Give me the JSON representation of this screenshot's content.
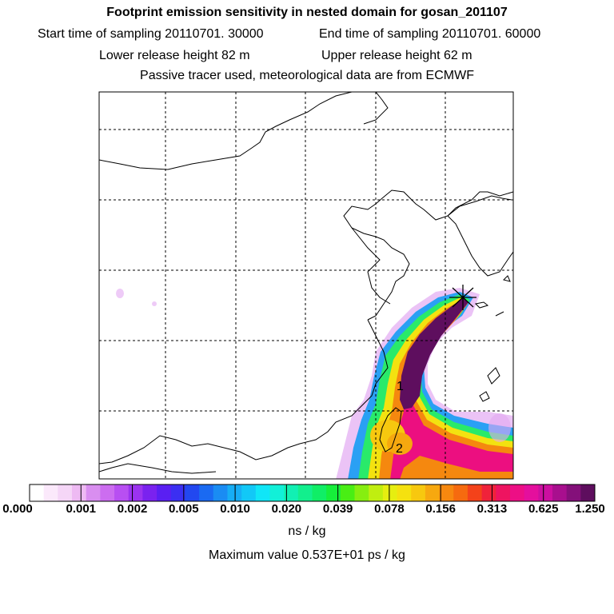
{
  "header": {
    "title": "Footprint emission sensitivity in nested domain for gosan_201107",
    "start_time": "Start time of sampling 20110701. 30000",
    "end_time": "End time of sampling 20110701. 60000",
    "lower_release": "Lower release height   82 m",
    "upper_release": "Upper release height   62 m",
    "tracer_info": "Passive tracer used, meteorological data are from ECMWF"
  },
  "map": {
    "labels": [
      {
        "text": "1"
      },
      {
        "text": "2"
      }
    ],
    "source_marker": "gosan-station-icon"
  },
  "colorbar": {
    "tick_labels": [
      "0.000",
      "0.001",
      "0.002",
      "0.005",
      "0.010",
      "0.020",
      "0.039",
      "0.078",
      "0.156",
      "0.313",
      "0.625",
      "1.250"
    ],
    "colors": [
      "#ffffff",
      "#fbe9fb",
      "#f5d6f7",
      "#eebaf3",
      "#d98ef0",
      "#cc6df0",
      "#b84ff2",
      "#9b33ef",
      "#7a22ef",
      "#5a1ff2",
      "#3b2ff2",
      "#2248f0",
      "#1a6af2",
      "#1a8cf3",
      "#17aef5",
      "#12c8f7",
      "#10e6f7",
      "#12f0d8",
      "#11f0b3",
      "#12ef8d",
      "#10ee66",
      "#16ee3a",
      "#49ee14",
      "#86ee10",
      "#c0ee10",
      "#e6ee10",
      "#f5e10f",
      "#f7c80f",
      "#f7a80f",
      "#f7880f",
      "#f66a0f",
      "#f4421a",
      "#f0223a",
      "#ee1460",
      "#ed0f85",
      "#e40f9d",
      "#cc0fa0",
      "#a80f8e",
      "#84107a",
      "#5e0e5e"
    ],
    "unit": "ns / kg"
  },
  "footer": {
    "max_value": "Maximum value  0.537E+01 ps / kg"
  }
}
